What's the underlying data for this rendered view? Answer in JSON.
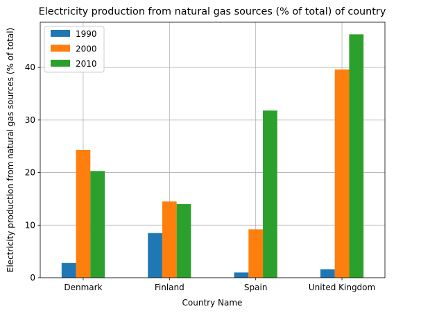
{
  "chart_data": {
    "type": "bar",
    "title": "Electricity production from natural gas sources (% of total) of country",
    "xlabel": "Country Name",
    "ylabel": "Electricity production from natural gas sources (% of total)",
    "categories": [
      "Denmark",
      "Finland",
      "Spain",
      "United Kingdom"
    ],
    "series": [
      {
        "name": "1990",
        "color": "#1f77b4",
        "values": [
          2.8,
          8.5,
          1.0,
          1.6
        ]
      },
      {
        "name": "2000",
        "color": "#ff7f0e",
        "values": [
          24.3,
          14.5,
          9.2,
          39.6
        ]
      },
      {
        "name": "2010",
        "color": "#2ca02c",
        "values": [
          20.3,
          14.0,
          31.8,
          46.3
        ]
      }
    ],
    "yticks": [
      0,
      10,
      20,
      30,
      40
    ],
    "ylim": [
      0,
      48.6
    ],
    "grid": true,
    "legend_position": "top-left"
  }
}
